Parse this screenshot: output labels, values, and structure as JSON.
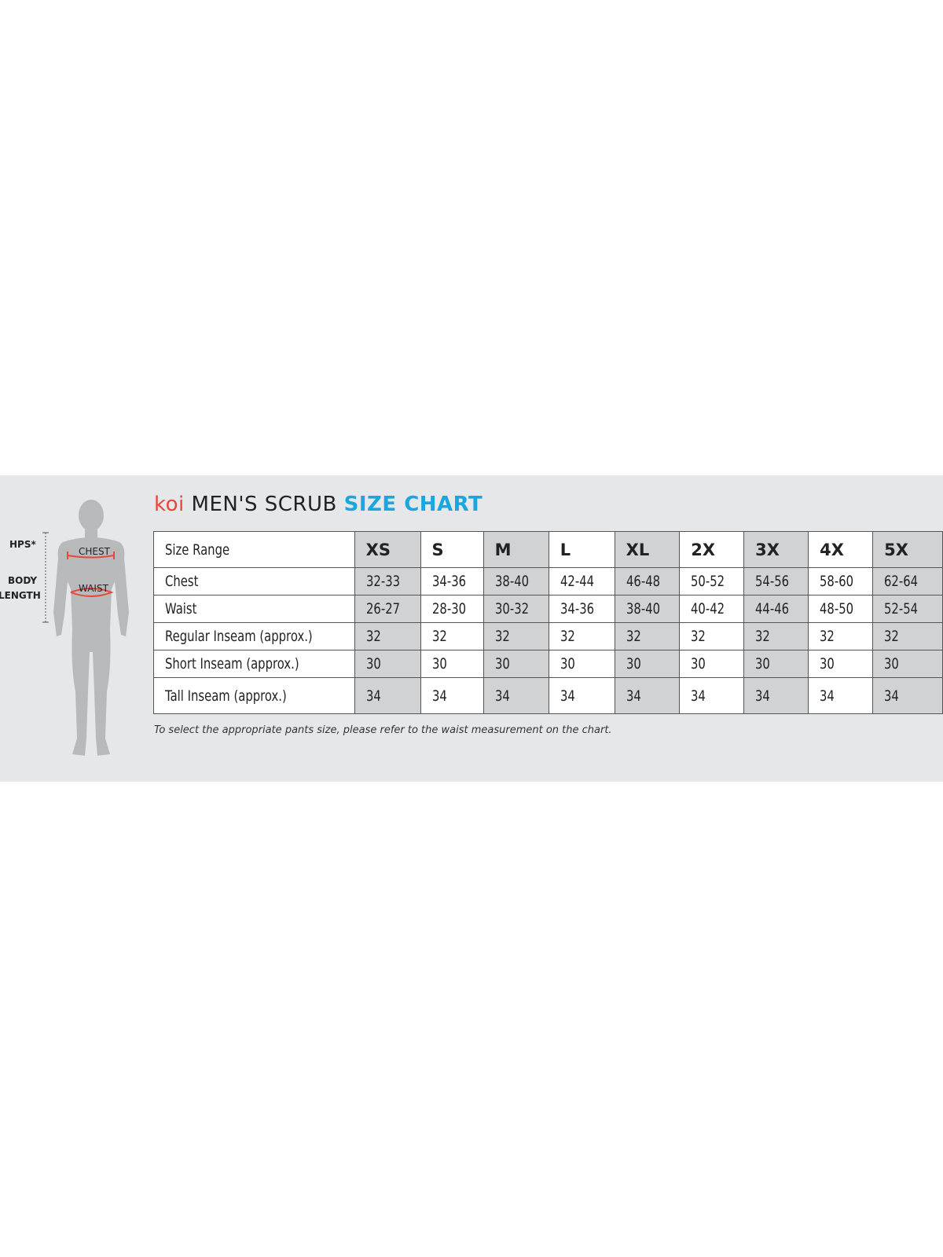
{
  "title": {
    "brand": "koi",
    "middle": "MEN'S SCRUB",
    "accent": "SIZE CHART"
  },
  "colors": {
    "brand": "#e8463a",
    "accent": "#1aa6df",
    "band": "#e6e7e8",
    "shade": "#d1d2d4",
    "measure": "#e8463a"
  },
  "figure": {
    "hps": "HPS*",
    "body_length": [
      "BODY",
      "LENGTH"
    ],
    "chest": "CHEST",
    "waist": "WAIST"
  },
  "table": {
    "header": [
      "Size Range",
      "XS",
      "S",
      "M",
      "L",
      "XL",
      "2X",
      "3X",
      "4X",
      "5X"
    ],
    "rows": [
      [
        "Chest",
        "32-33",
        "34-36",
        "38-40",
        "42-44",
        "46-48",
        "50-52",
        "54-56",
        "58-60",
        "62-64"
      ],
      [
        "Waist",
        "26-27",
        "28-30",
        "30-32",
        "34-36",
        "38-40",
        "40-42",
        "44-46",
        "48-50",
        "52-54"
      ],
      [
        "Regular Inseam (approx.)",
        "32",
        "32",
        "32",
        "32",
        "32",
        "32",
        "32",
        "32",
        "32"
      ],
      [
        "Short Inseam (approx.)",
        "30",
        "30",
        "30",
        "30",
        "30",
        "30",
        "30",
        "30",
        "30"
      ],
      [
        "Tall Inseam (approx.)",
        "34",
        "34",
        "34",
        "34",
        "34",
        "34",
        "34",
        "34",
        "34"
      ]
    ]
  },
  "caption": "To select the appropriate pants size, please refer to the waist measurement on the chart."
}
